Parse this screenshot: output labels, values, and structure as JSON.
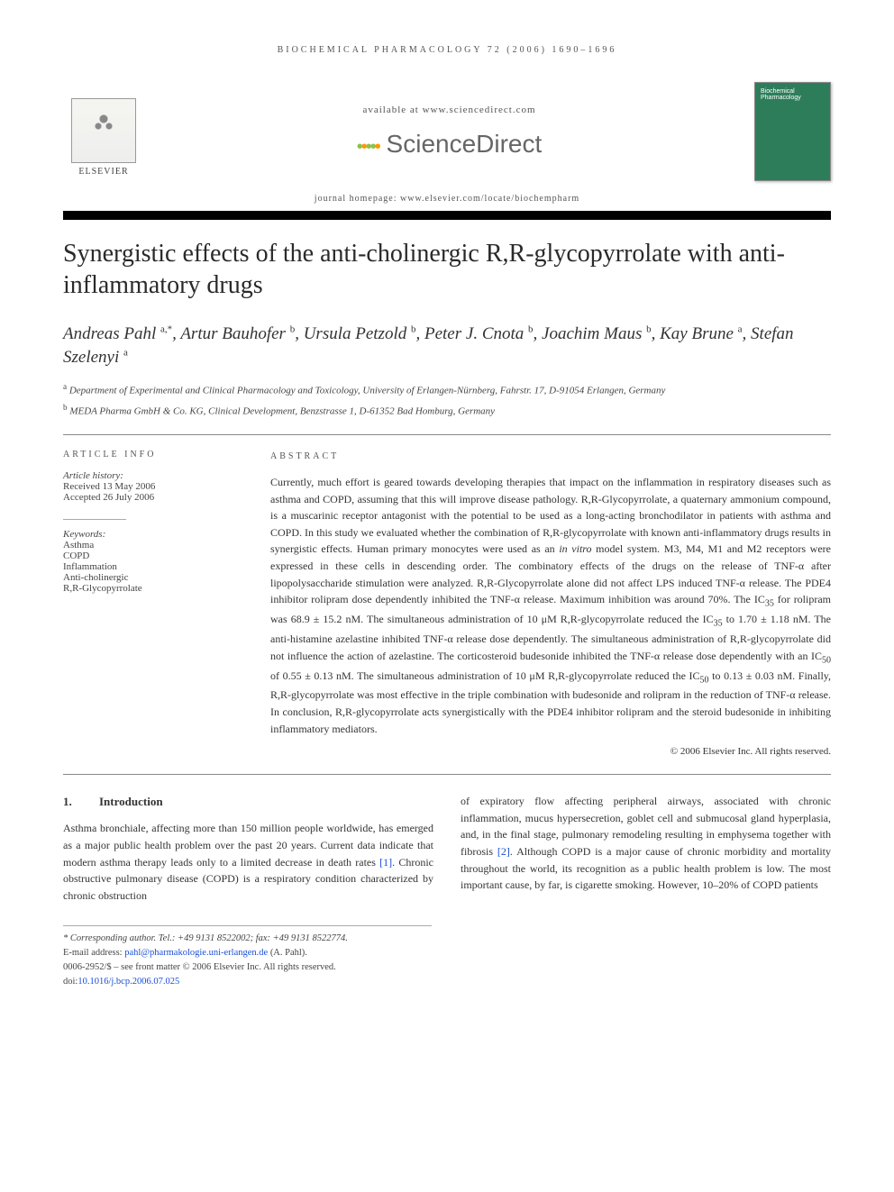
{
  "runningHead": "BIOCHEMICAL PHARMACOLOGY 72 (2006) 1690–1696",
  "availableAt": "available at www.sciencedirect.com",
  "sdLogoText": "ScienceDirect",
  "journalHomepage": "journal homepage: www.elsevier.com/locate/biochempharm",
  "publisherWord": "ELSEVIER",
  "coverLine1": "Biochemical",
  "coverLine2": "Pharmacology",
  "title": "Synergistic effects of the anti-cholinergic R,R-glycopyrrolate with anti-inflammatory drugs",
  "authorsHtml": "Andreas Pahl <sup>a,*</sup>, Artur Bauhofer <sup>b</sup>, Ursula Petzold <sup>b</sup>, Peter J. Cnota <sup>b</sup>, Joachim Maus <sup>b</sup>, Kay Brune <sup>a</sup>, Stefan Szelenyi <sup>a</sup>",
  "affiliations": {
    "a": "Department of Experimental and Clinical Pharmacology and Toxicology, University of Erlangen-Nürnberg, Fahrstr. 17, D-91054 Erlangen, Germany",
    "b": "MEDA Pharma GmbH & Co. KG, Clinical Development, Benzstrasse 1, D-61352 Bad Homburg, Germany"
  },
  "articleInfoHead": "ARTICLE INFO",
  "abstractHead": "ABSTRACT",
  "history": {
    "label": "Article history:",
    "received": "Received 13 May 2006",
    "accepted": "Accepted 26 July 2006"
  },
  "keywordsLabel": "Keywords:",
  "keywords": [
    "Asthma",
    "COPD",
    "Inflammation",
    "Anti-cholinergic",
    "R,R-Glycopyrrolate"
  ],
  "abstract": "Currently, much effort is geared towards developing therapies that impact on the inflammation in respiratory diseases such as asthma and COPD, assuming that this will improve disease pathology. R,R-Glycopyrrolate, a quaternary ammonium compound, is a muscarinic receptor antagonist with the potential to be used as a long-acting bronchodilator in patients with asthma and COPD. In this study we evaluated whether the combination of R,R-glycopyrrolate with known anti-inflammatory drugs results in synergistic effects. Human primary monocytes were used as an in vitro model system. M3, M4, M1 and M2 receptors were expressed in these cells in descending order. The combinatory effects of the drugs on the release of TNF-α after lipopolysaccharide stimulation were analyzed. R,R-Glycopyrrolate alone did not affect LPS induced TNF-α release. The PDE4 inhibitor rolipram dose dependently inhibited the TNF-α release. Maximum inhibition was around 70%. The IC35 for rolipram was 68.9 ± 15.2 nM. The simultaneous administration of 10 μM R,R-glycopyrrolate reduced the IC35 to 1.70 ± 1.18 nM. The anti-histamine azelastine inhibited TNF-α release dose dependently. The simultaneous administration of R,R-glycopyrrolate did not influence the action of azelastine. The corticosteroid budesonide inhibited the TNF-α release dose dependently with an IC50 of 0.55 ± 0.13 nM. The simultaneous administration of 10 μM R,R-glycopyrrolate reduced the IC50 to 0.13 ± 0.03 nM. Finally, R,R-glycopyrrolate was most effective in the triple combination with budesonide and rolipram in the reduction of TNF-α release. In conclusion, R,R-glycopyrrolate acts synergistically with the PDE4 inhibitor rolipram and the steroid budesonide in inhibiting inflammatory mediators.",
  "copyright": "© 2006 Elsevier Inc. All rights reserved.",
  "section1": {
    "num": "1.",
    "title": "Introduction",
    "col1": "Asthma bronchiale, affecting more than 150 million people worldwide, has emerged as a major public health problem over the past 20 years. Current data indicate that modern asthma therapy leads only to a limited decrease in death rates [1]. Chronic obstructive pulmonary disease (COPD) is a respiratory condition characterized by chronic obstruction",
    "col2": "of expiratory flow affecting peripheral airways, associated with chronic inflammation, mucus hypersecretion, goblet cell and submucosal gland hyperplasia, and, in the final stage, pulmonary remodeling resulting in emphysema together with fibrosis [2]. Although COPD is a major cause of chronic morbidity and mortality throughout the world, its recognition as a public health problem is low. The most important cause, by far, is cigarette smoking. However, 10–20% of COPD patients"
  },
  "footnotes": {
    "corr": "* Corresponding author. Tel.: +49 9131 8522002; fax: +49 9131 8522774.",
    "emailLabel": "E-mail address: ",
    "email": "pahl@pharmakologie.uni-erlangen.de",
    "emailSuffix": " (A. Pahl).",
    "frontMatter": "0006-2952/$ – see front matter © 2006 Elsevier Inc. All rights reserved.",
    "doiLabel": "doi:",
    "doi": "10.1016/j.bcp.2006.07.025"
  },
  "refLinks": {
    "r1": "[1]",
    "r2": "[2]"
  }
}
